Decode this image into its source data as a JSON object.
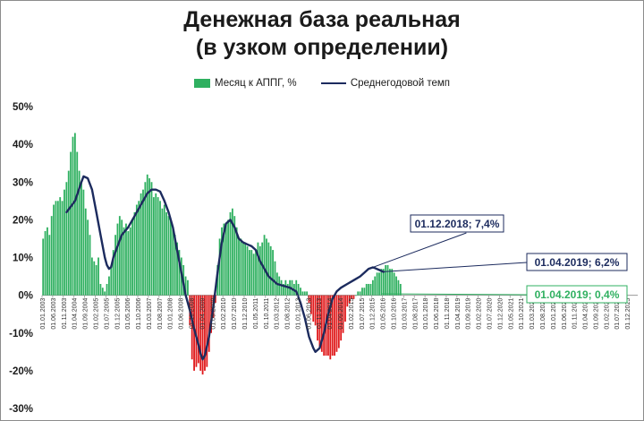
{
  "chart_data": {
    "type": "bar",
    "title_line1": "Денежная база реальная",
    "title_line2": "(в узком определении)",
    "ylim": [
      -30,
      50
    ],
    "y_ticks": [
      "50%",
      "40%",
      "30%",
      "20%",
      "10%",
      "0%",
      "-10%",
      "-20%",
      "-30%"
    ],
    "y_tick_values": [
      50,
      40,
      30,
      20,
      10,
      0,
      -10,
      -20,
      -30
    ],
    "grid": false,
    "legend_placement": "top",
    "colors": {
      "bar_positive": "#2fb060",
      "bar_negative": "#e0191b",
      "line": "#1c2b5e",
      "callout_green": "#2fb060",
      "callout_blue": "#1c2b5e"
    },
    "x_tick_labels": [
      "01.01.2003",
      "01.06.2003",
      "01.11.2003",
      "01.04.2004",
      "01.09.2004",
      "01.02.2005",
      "01.07.2005",
      "01.12.2005",
      "01.05.2006",
      "01.10.2006",
      "01.03.2007",
      "01.08.2007",
      "01.01.2008",
      "01.06.2008",
      "01.11.2008",
      "01.04.2009",
      "01.09.2009",
      "01.02.2010",
      "01.07.2010",
      "01.12.2010",
      "01.05.2011",
      "01.10.2011",
      "01.03.2012",
      "01.08.2012",
      "01.01.2013",
      "01.06.2013",
      "01.11.2013",
      "01.04.2014",
      "01.09.2014",
      "01.02.2015",
      "01.07.2015",
      "01.12.2015",
      "01.05.2016",
      "01.10.2016",
      "01.03.2017",
      "01.08.2017",
      "01.01.2018",
      "01.06.2018",
      "01.11.2018",
      "01.04.2019",
      "01.09.2019",
      "01.02.2020",
      "01.07.2020",
      "01.12.2020",
      "01.05.2021",
      "01.10.2021",
      "01.03.2022",
      "01.08.2022",
      "01.01.2023",
      "01.06.2023",
      "01.11.2023",
      "01.04.2024",
      "01.09.2024",
      "01.02.2025",
      "01.07.2025",
      "01.12.2025"
    ],
    "series": [
      {
        "name": "Месяц к АППГ, %",
        "kind": "bar",
        "values": [
          15,
          17,
          18,
          16,
          21,
          24,
          25,
          25,
          26,
          25,
          28,
          30,
          33,
          38,
          42,
          43,
          38,
          33,
          30,
          28,
          23,
          20,
          16,
          10,
          9,
          8,
          10,
          3,
          2,
          1,
          3,
          5,
          8,
          12,
          16,
          19,
          21,
          20,
          18,
          19,
          17,
          18,
          20,
          22,
          24,
          25,
          27,
          28,
          30,
          32,
          31,
          30,
          26,
          27,
          26,
          25,
          23,
          24,
          22,
          21,
          20,
          18,
          16,
          14,
          12,
          10,
          8,
          5,
          4,
          -8,
          -17,
          -20,
          -19,
          -18,
          -20,
          -21,
          -20,
          -19,
          -15,
          -10,
          -6,
          -2,
          8,
          15,
          18,
          19,
          19,
          20,
          22,
          23,
          21,
          18,
          15,
          15,
          14,
          14,
          13,
          12,
          12,
          11,
          12,
          14,
          13,
          14,
          16,
          15,
          14,
          13,
          12,
          9,
          6,
          5,
          4,
          3,
          4,
          3,
          4,
          4,
          3,
          4,
          3,
          2,
          1,
          1,
          1,
          -2,
          -5,
          -7,
          -8,
          -12,
          -14,
          -15,
          -16,
          -16,
          -16,
          -17,
          -16,
          -16,
          -15,
          -14,
          -12,
          -10,
          -7,
          -3,
          -2,
          -1,
          -1,
          0,
          1,
          1,
          2,
          2,
          3,
          3,
          3,
          4,
          5,
          6,
          6,
          7,
          7,
          8,
          8,
          7,
          7,
          6,
          5,
          4,
          3
        ]
      },
      {
        "name": "Среднегодовой темп",
        "kind": "line",
        "points": [
          [
            11,
            22
          ],
          [
            15,
            25
          ],
          [
            18,
            30
          ],
          [
            19,
            31.5
          ],
          [
            21,
            31
          ],
          [
            23,
            28
          ],
          [
            25,
            22
          ],
          [
            27,
            16
          ],
          [
            29,
            10
          ],
          [
            30,
            8
          ],
          [
            31,
            7
          ],
          [
            32,
            7.5
          ],
          [
            33,
            10
          ],
          [
            35,
            13
          ],
          [
            37,
            16
          ],
          [
            40,
            18
          ],
          [
            43,
            21
          ],
          [
            46,
            24
          ],
          [
            49,
            27
          ],
          [
            51,
            28
          ],
          [
            53,
            28
          ],
          [
            55,
            27.5
          ],
          [
            57,
            25
          ],
          [
            59,
            22
          ],
          [
            61,
            18
          ],
          [
            63,
            12
          ],
          [
            65,
            6
          ],
          [
            67,
            0
          ],
          [
            69,
            -4
          ],
          [
            71,
            -9
          ],
          [
            73,
            -13
          ],
          [
            74,
            -15.5
          ],
          [
            75,
            -17
          ],
          [
            76,
            -16
          ],
          [
            78,
            -11
          ],
          [
            80,
            -3
          ],
          [
            82,
            6
          ],
          [
            84,
            14
          ],
          [
            86,
            19
          ],
          [
            88,
            20
          ],
          [
            90,
            18
          ],
          [
            92,
            15
          ],
          [
            94,
            14
          ],
          [
            96,
            13.5
          ],
          [
            98,
            13
          ],
          [
            100,
            12
          ],
          [
            102,
            9
          ],
          [
            104,
            7
          ],
          [
            106,
            5
          ],
          [
            108,
            4
          ],
          [
            110,
            3
          ],
          [
            113,
            2.5
          ],
          [
            116,
            2
          ],
          [
            119,
            1
          ],
          [
            121,
            -2
          ],
          [
            123,
            -6
          ],
          [
            125,
            -11
          ],
          [
            127,
            -14
          ],
          [
            128,
            -15
          ],
          [
            130,
            -14
          ],
          [
            132,
            -10
          ],
          [
            134,
            -5
          ],
          [
            136,
            -1
          ],
          [
            138,
            1
          ],
          [
            140,
            2
          ],
          [
            143,
            3
          ],
          [
            146,
            4
          ],
          [
            149,
            5
          ],
          [
            151,
            6
          ],
          [
            153,
            7
          ],
          [
            155,
            7.4
          ],
          [
            156,
            7.2
          ],
          [
            158,
            6.7
          ],
          [
            160,
            6.2
          ]
        ]
      }
    ],
    "callouts": [
      {
        "text": "01.12.2018; 7,4%",
        "style": "blue"
      },
      {
        "text": "01.04.2019; 6,2%",
        "style": "blue"
      },
      {
        "text": "01.04.2019; 0,4%",
        "style": "green"
      }
    ]
  }
}
